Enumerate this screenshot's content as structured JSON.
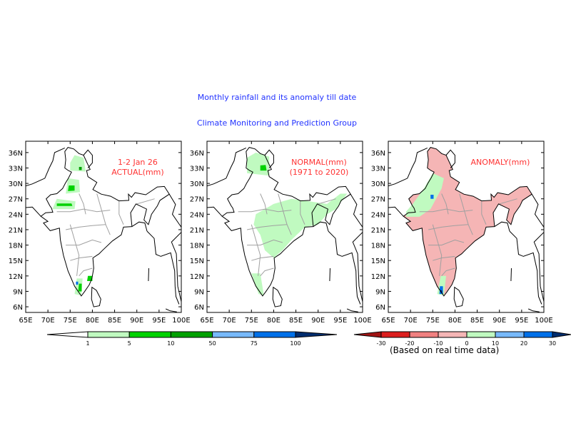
{
  "header": {
    "title": "Monthly rainfall and its anomaly till date",
    "subtitle": "Climate Monitoring and Prediction Group"
  },
  "axes": {
    "lon_ticks": [
      "65E",
      "70E",
      "75E",
      "80E",
      "85E",
      "90E",
      "95E",
      "100E"
    ],
    "lon_values": [
      65,
      70,
      75,
      80,
      85,
      90,
      95,
      100
    ],
    "lat_ticks": [
      "6N",
      "9N",
      "12N",
      "15N",
      "18N",
      "21N",
      "24N",
      "27N",
      "30N",
      "33N",
      "36N"
    ],
    "lat_values": [
      6,
      9,
      12,
      15,
      18,
      21,
      24,
      27,
      30,
      33,
      36
    ],
    "lon_range": [
      65,
      100
    ],
    "lat_range": [
      4.9,
      38.2
    ]
  },
  "colors": {
    "label": "#ff3333",
    "title": "#2233ff",
    "state_border": "#a0a0a0",
    "coast": "#000000"
  },
  "panels": [
    {
      "label_line1": "1-2 Jan 26",
      "label_line2": "ACTUAL(mm)",
      "fills": [
        {
          "color": "#c0fac0",
          "poly": [
            [
              75,
              32.5
            ],
            [
              78.5,
              32.3
            ],
            [
              78,
              35
            ],
            [
              76,
              35.5
            ],
            [
              75,
              34
            ]
          ]
        },
        {
          "color": "#c0fac0",
          "poly": [
            [
              74,
              28
            ],
            [
              77.2,
              28.3
            ],
            [
              77,
              30.7
            ],
            [
              74.5,
              31
            ]
          ]
        },
        {
          "color": "#c0fac0",
          "poly": [
            [
              71,
              25
            ],
            [
              76,
              25
            ],
            [
              76.2,
              26.5
            ],
            [
              72,
              27
            ]
          ]
        },
        {
          "color": "#c0fac0",
          "poly": [
            [
              76,
              8.5
            ],
            [
              77.5,
              8.2
            ],
            [
              77.8,
              11.5
            ],
            [
              76.5,
              11.5
            ]
          ]
        },
        {
          "color": "#00d200",
          "poly": [
            [
              74.5,
              28.5
            ],
            [
              76,
              28.6
            ],
            [
              76,
              29.6
            ],
            [
              74.7,
              29.6
            ]
          ]
        },
        {
          "color": "#00d200",
          "poly": [
            [
              72,
              25.6
            ],
            [
              75.5,
              25.6
            ],
            [
              75.3,
              26.1
            ],
            [
              72,
              26.1
            ]
          ]
        },
        {
          "color": "#00d200",
          "poly": [
            [
              76.8,
              9
            ],
            [
              77.6,
              9
            ],
            [
              77.6,
              10.5
            ],
            [
              77,
              10.5
            ]
          ]
        },
        {
          "color": "#00d200",
          "poly": [
            [
              78.8,
              11
            ],
            [
              80,
              11
            ],
            [
              80,
              12
            ],
            [
              79,
              12
            ]
          ]
        },
        {
          "color": "#00a000",
          "poly": [
            [
              77,
              32.6
            ],
            [
              77.6,
              32.6
            ],
            [
              77.6,
              33.2
            ],
            [
              77,
              33.2
            ]
          ]
        },
        {
          "color": "#0070e8",
          "poly": [
            [
              76.3,
              10.3
            ],
            [
              76.8,
              10.3
            ],
            [
              76.8,
              10.9
            ],
            [
              76.3,
              10.9
            ]
          ]
        }
      ]
    },
    {
      "label_line1": "NORMAL(mm)",
      "label_line2": "(1971 to 2020)",
      "fills": [
        {
          "color": "#c0fac0",
          "poly": [
            [
              74,
              32
            ],
            [
              79,
              31.5
            ],
            [
              79,
              35.2
            ],
            [
              76,
              36
            ],
            [
              74,
              35
            ]
          ]
        },
        {
          "color": "#c0fac0",
          "poly": [
            [
              76,
              24
            ],
            [
              80,
              26
            ],
            [
              84,
              27
            ],
            [
              88,
              26.5
            ],
            [
              92,
              26
            ],
            [
              95,
              28
            ],
            [
              96.5,
              28
            ],
            [
              94,
              25
            ],
            [
              92,
              24
            ],
            [
              90,
              22
            ],
            [
              87,
              21.5
            ],
            [
              84,
              19
            ],
            [
              82,
              17
            ],
            [
              80,
              15.5
            ],
            [
              78,
              17
            ],
            [
              77,
              20
            ],
            [
              75.5,
              22
            ]
          ]
        },
        {
          "color": "#c0fac0",
          "poly": [
            [
              75,
              12.5
            ],
            [
              77,
              12.5
            ],
            [
              77.8,
              8.2
            ],
            [
              76.6,
              8.5
            ]
          ]
        },
        {
          "color": "#00d200",
          "poly": [
            [
              77,
              32.5
            ],
            [
              78.4,
              32.5
            ],
            [
              78.2,
              33.6
            ],
            [
              77,
              33.5
            ]
          ]
        }
      ]
    },
    {
      "label_line1": "ANOMALY(mm)",
      "label_line2": "",
      "fill_india": "#f5b5b5",
      "fills": [
        {
          "color": "#c0fac0",
          "poly": [
            [
              69,
              23.5
            ],
            [
              72,
              23.5
            ],
            [
              74.5,
              25
            ],
            [
              77,
              29
            ],
            [
              77.5,
              31
            ],
            [
              75,
              32
            ],
            [
              73,
              29
            ],
            [
              70.5,
              26
            ],
            [
              69,
              24.5
            ]
          ]
        },
        {
          "color": "#c0fac0",
          "poly": [
            [
              76,
              8.5
            ],
            [
              77.5,
              8.2
            ],
            [
              78,
              12
            ],
            [
              76.8,
              12
            ]
          ]
        },
        {
          "color": "#0070e8",
          "poly": [
            [
              74.5,
              27
            ],
            [
              75.2,
              27
            ],
            [
              75.2,
              27.8
            ],
            [
              74.5,
              27.8
            ]
          ]
        },
        {
          "color": "#0070e8",
          "poly": [
            [
              76.5,
              8.5
            ],
            [
              77.3,
              8.5
            ],
            [
              77.3,
              10
            ],
            [
              76.6,
              10
            ]
          ]
        },
        {
          "color": "#002d6e",
          "poly": [
            [
              76.8,
              8.7
            ],
            [
              77.1,
              8.7
            ],
            [
              77.1,
              9.2
            ],
            [
              76.8,
              9.2
            ]
          ]
        }
      ]
    }
  ],
  "legend_rain": {
    "levels": [
      "1",
      "5",
      "10",
      "50",
      "75",
      "100"
    ],
    "colors": [
      "#ffffff",
      "#c0fac0",
      "#00d200",
      "#00a000",
      "#78b9fa",
      "#0070e8",
      "#002d6e"
    ]
  },
  "legend_anomaly": {
    "levels": [
      "-30",
      "-20",
      "-10",
      "0",
      "10",
      "20",
      "30"
    ],
    "colors": [
      "#a01414",
      "#dc1e1e",
      "#f08080",
      "#f5b5b5",
      "#c0fac0",
      "#78b9fa",
      "#0070e8",
      "#002d6e"
    ],
    "note": "(Based on real time data)"
  },
  "geo": {
    "india": [
      [
        68.4,
        23.6
      ],
      [
        70,
        22.6
      ],
      [
        69,
        22.3
      ],
      [
        70.5,
        20.8
      ],
      [
        72.6,
        21.3
      ],
      [
        72.8,
        19
      ],
      [
        73.5,
        16
      ],
      [
        74.5,
        13
      ],
      [
        76,
        10
      ],
      [
        77.5,
        8.1
      ],
      [
        78.2,
        8.9
      ],
      [
        79.3,
        10.3
      ],
      [
        79.9,
        11.5
      ],
      [
        80.3,
        13.5
      ],
      [
        80.1,
        15.5
      ],
      [
        81.5,
        16.3
      ],
      [
        82.3,
        17
      ],
      [
        84.5,
        18.8
      ],
      [
        86.5,
        20
      ],
      [
        87,
        21.5
      ],
      [
        88.9,
        21.6
      ],
      [
        88.6,
        24.3
      ],
      [
        89.8,
        26
      ],
      [
        92.2,
        25
      ],
      [
        91.6,
        22.9
      ],
      [
        92.6,
        22
      ],
      [
        93.3,
        24
      ],
      [
        94.6,
        25.6
      ],
      [
        95.2,
        26.7
      ],
      [
        97.3,
        27.9
      ],
      [
        96.2,
        29.4
      ],
      [
        94.6,
        29.3
      ],
      [
        92,
        27.8
      ],
      [
        89.6,
        28.2
      ],
      [
        88.8,
        27.3
      ],
      [
        88.1,
        27.9
      ],
      [
        88.2,
        26.7
      ],
      [
        86,
        26.6
      ],
      [
        84.1,
        27.5
      ],
      [
        82,
        27.9
      ],
      [
        80.1,
        28.8
      ],
      [
        81,
        30.2
      ],
      [
        79,
        31.3
      ],
      [
        78.7,
        32.5
      ],
      [
        79.5,
        32.7
      ],
      [
        78,
        35.5
      ],
      [
        77,
        35.8
      ],
      [
        75.8,
        36.7
      ],
      [
        74.5,
        37
      ],
      [
        73.8,
        36.2
      ],
      [
        74,
        34.6
      ],
      [
        73.8,
        33
      ],
      [
        74.6,
        32.5
      ],
      [
        75.3,
        32.2
      ],
      [
        74.6,
        31
      ],
      [
        73.9,
        30
      ],
      [
        73.3,
        29
      ],
      [
        72,
        28
      ],
      [
        70.6,
        27.8
      ],
      [
        69.6,
        27
      ],
      [
        70.4,
        25.7
      ],
      [
        70.8,
        25.2
      ],
      [
        71.1,
        24.4
      ],
      [
        69.5,
        24.3
      ]
    ],
    "srilanka": [
      [
        79.9,
        9.8
      ],
      [
        80.9,
        9.2
      ],
      [
        81.9,
        7.5
      ],
      [
        81.6,
        6.2
      ],
      [
        80.3,
        6
      ],
      [
        79.8,
        7.5
      ]
    ],
    "lines": [
      [
        [
          68.4,
          23.6
        ],
        [
          66.5,
          25.4
        ],
        [
          65,
          25.3
        ]
      ],
      [
        [
          65,
          29.5
        ],
        [
          66.5,
          29.9
        ],
        [
          69.3,
          31
        ],
        [
          70.3,
          33
        ],
        [
          71.1,
          34.4
        ],
        [
          71.5,
          36
        ],
        [
          73.8,
          36.9
        ]
      ],
      [
        [
          78,
          35.5
        ],
        [
          79,
          36.5
        ],
        [
          80,
          35.5
        ],
        [
          80,
          34
        ],
        [
          79,
          33
        ]
      ],
      [
        [
          92.3,
          20.7
        ],
        [
          93.9,
          19.3
        ],
        [
          94.3,
          16.2
        ],
        [
          95.4,
          15.8
        ],
        [
          97.6,
          16.5
        ],
        [
          98.5,
          13
        ],
        [
          98.6,
          10
        ],
        [
          98.8,
          8
        ],
        [
          99.5,
          6.5
        ]
      ],
      [
        [
          97.3,
          27.9
        ],
        [
          98.7,
          25.9
        ],
        [
          98,
          24
        ],
        [
          99.5,
          22.1
        ],
        [
          100,
          21.5
        ]
      ],
      [
        [
          100,
          20.5
        ],
        [
          97.8,
          18.6
        ],
        [
          98.9,
          16.3
        ],
        [
          99.2,
          10
        ],
        [
          100,
          7
        ]
      ],
      [
        [
          92.3,
          20.7
        ],
        [
          91.8,
          22.3
        ],
        [
          90.5,
          22.5
        ],
        [
          88.9,
          21.6
        ]
      ],
      [
        [
          92.7,
          13.5
        ],
        [
          92.6,
          11
        ]
      ],
      [
        [
          96.5,
          5.6
        ],
        [
          97.5,
          5.2
        ],
        [
          99,
          5
        ]
      ]
    ],
    "states": [
      [
        [
          72,
          24.5
        ],
        [
          75,
          24.5
        ],
        [
          78,
          25
        ],
        [
          81,
          24.5
        ],
        [
          84,
          24.8
        ]
      ],
      [
        [
          74,
          21
        ],
        [
          77,
          21.5
        ],
        [
          80,
          21.8
        ],
        [
          83,
          22
        ]
      ],
      [
        [
          74,
          18
        ],
        [
          77,
          18
        ],
        [
          80,
          19
        ],
        [
          82,
          18.5
        ]
      ],
      [
        [
          75,
          15
        ],
        [
          77,
          15.5
        ],
        [
          80,
          15.8
        ]
      ],
      [
        [
          77,
          12
        ],
        [
          78,
          13
        ],
        [
          80,
          13.5
        ]
      ],
      [
        [
          77,
          28
        ],
        [
          78,
          26
        ],
        [
          78.5,
          24
        ]
      ],
      [
        [
          81,
          28
        ],
        [
          82,
          25
        ],
        [
          83,
          22
        ],
        [
          84,
          20
        ]
      ],
      [
        [
          86,
          26.5
        ],
        [
          86,
          24
        ],
        [
          87,
          22
        ]
      ],
      [
        [
          75,
          22
        ],
        [
          76,
          19
        ],
        [
          77,
          16
        ],
        [
          76.5,
          12
        ]
      ],
      [
        [
          90,
          26
        ],
        [
          92,
          26.5
        ],
        [
          94,
          27
        ]
      ]
    ]
  }
}
